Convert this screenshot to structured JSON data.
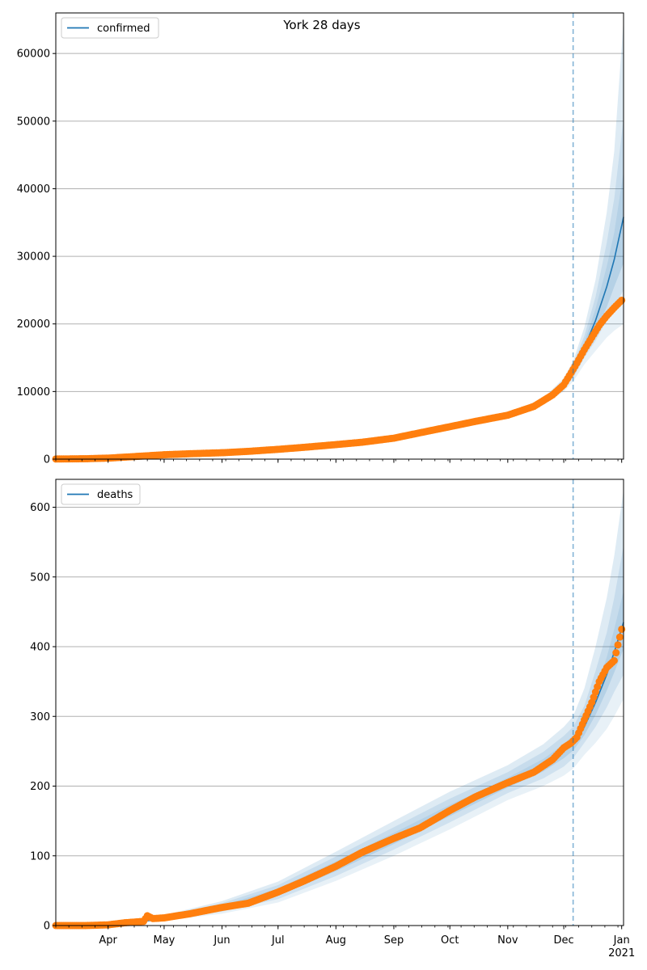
{
  "figure": {
    "title": "York 28 days"
  },
  "colors": {
    "model_line": "#1f77b4",
    "observed": "#ff7f0e",
    "band": "#1f77b4",
    "grid": "#b0b0b0",
    "forecast_start_line": "#1f77b4"
  },
  "x_axis": {
    "month_labels": [
      "Apr",
      "May",
      "Jun",
      "Jul",
      "Aug",
      "Sep",
      "Oct",
      "Nov",
      "Dec",
      "Jan"
    ],
    "month_dates": [
      "2020-04-01",
      "2020-05-01",
      "2020-06-01",
      "2020-07-01",
      "2020-08-01",
      "2020-09-01",
      "2020-10-01",
      "2020-11-01",
      "2020-12-01",
      "2021-01-01"
    ],
    "year_label": "2021",
    "range": [
      "2020-03-04",
      "2021-01-02"
    ],
    "forecast_start": "2020-12-06"
  },
  "chart_data": [
    {
      "type": "line",
      "legend": "confirmed",
      "legend_position": "top-left",
      "grid": "y",
      "ylim": [
        0,
        66000
      ],
      "yticks": [
        0,
        10000,
        20000,
        30000,
        40000,
        50000,
        60000
      ],
      "ytick_labels": [
        "0",
        "10000",
        "20000",
        "30000",
        "40000",
        "50000",
        "60000"
      ],
      "observed": {
        "x": [
          "2020-03-04",
          "2020-03-20",
          "2020-04-01",
          "2020-04-15",
          "2020-05-01",
          "2020-05-15",
          "2020-06-01",
          "2020-06-15",
          "2020-07-01",
          "2020-07-15",
          "2020-08-01",
          "2020-08-15",
          "2020-09-01",
          "2020-09-15",
          "2020-10-01",
          "2020-10-15",
          "2020-11-01",
          "2020-11-15",
          "2020-11-25",
          "2020-12-01",
          "2020-12-05",
          "2020-12-08",
          "2020-12-12",
          "2020-12-16",
          "2020-12-20",
          "2020-12-24",
          "2020-12-28",
          "2021-01-01"
        ],
        "y": [
          20,
          60,
          150,
          380,
          650,
          800,
          950,
          1150,
          1450,
          1750,
          2150,
          2500,
          3100,
          3900,
          4800,
          5600,
          6500,
          7800,
          9500,
          11000,
          12800,
          14200,
          16200,
          18000,
          19800,
          21200,
          22400,
          23500
        ]
      },
      "model": {
        "x": [
          "2020-03-04",
          "2020-04-01",
          "2020-05-01",
          "2020-06-01",
          "2020-07-01",
          "2020-08-01",
          "2020-09-01",
          "2020-10-01",
          "2020-11-01",
          "2020-11-20",
          "2020-12-01",
          "2020-12-06",
          "2020-12-12",
          "2020-12-18",
          "2020-12-24",
          "2020-12-28",
          "2021-01-02"
        ],
        "y": [
          20,
          150,
          650,
          950,
          1450,
          2150,
          3100,
          4800,
          6500,
          8500,
          11000,
          13000,
          16500,
          20500,
          25500,
          29500,
          35800
        ],
        "band_low": [
          [
            20,
            140,
            620,
            900,
            1400,
            2050,
            2950,
            4600,
            6200,
            8000,
            10000,
            11500,
            14000,
            16000,
            18000,
            19000,
            20000
          ],
          [
            20,
            145,
            630,
            920,
            1420,
            2090,
            3010,
            4680,
            6320,
            8200,
            10400,
            12000,
            15000,
            17500,
            20500,
            22500,
            25000
          ],
          [
            20,
            148,
            640,
            935,
            1435,
            2120,
            3060,
            4740,
            6410,
            8350,
            10700,
            12500,
            15700,
            18800,
            22500,
            25500,
            29000
          ]
        ],
        "band_high": [
          [
            20,
            152,
            660,
            965,
            1465,
            2180,
            3140,
            4860,
            6590,
            8650,
            11300,
            13500,
            17300,
            22200,
            28500,
            33500,
            42500
          ],
          [
            20,
            155,
            670,
            980,
            1480,
            2210,
            3190,
            4920,
            6680,
            8800,
            11600,
            14000,
            18200,
            24000,
            32000,
            38500,
            50500
          ],
          [
            20,
            160,
            680,
            1000,
            1500,
            2250,
            3250,
            5000,
            6800,
            9000,
            12000,
            14500,
            19500,
            26500,
            36500,
            45500,
            65000
          ]
        ]
      }
    },
    {
      "type": "line",
      "legend": "deaths",
      "legend_position": "top-left",
      "grid": "y",
      "ylim": [
        0,
        640
      ],
      "yticks": [
        0,
        100,
        200,
        300,
        400,
        500,
        600
      ],
      "ytick_labels": [
        "0",
        "100",
        "200",
        "300",
        "400",
        "500",
        "600"
      ],
      "observed": {
        "x": [
          "2020-03-04",
          "2020-03-20",
          "2020-04-01",
          "2020-04-10",
          "2020-04-20",
          "2020-04-22",
          "2020-04-25",
          "2020-05-01",
          "2020-05-15",
          "2020-06-01",
          "2020-06-15",
          "2020-07-01",
          "2020-07-15",
          "2020-08-01",
          "2020-08-15",
          "2020-09-01",
          "2020-09-15",
          "2020-10-01",
          "2020-10-15",
          "2020-11-01",
          "2020-11-15",
          "2020-11-25",
          "2020-12-01",
          "2020-12-05",
          "2020-12-08",
          "2020-12-12",
          "2020-12-16",
          "2020-12-20",
          "2020-12-24",
          "2020-12-28",
          "2021-01-01"
        ],
        "y": [
          0,
          0,
          1,
          4,
          6,
          14,
          10,
          11,
          17,
          26,
          32,
          48,
          64,
          85,
          105,
          125,
          140,
          165,
          185,
          205,
          220,
          238,
          255,
          262,
          270,
          295,
          320,
          350,
          370,
          380,
          425
        ]
      },
      "model": {
        "x": [
          "2020-03-04",
          "2020-04-01",
          "2020-04-20",
          "2020-05-01",
          "2020-06-01",
          "2020-07-01",
          "2020-08-01",
          "2020-09-01",
          "2020-10-01",
          "2020-11-01",
          "2020-11-20",
          "2020-12-01",
          "2020-12-06",
          "2020-12-12",
          "2020-12-18",
          "2020-12-24",
          "2020-12-28",
          "2021-01-02"
        ],
        "y": [
          0,
          1,
          6,
          11,
          26,
          48,
          85,
          125,
          165,
          205,
          230,
          250,
          262,
          285,
          320,
          360,
          392,
          435
        ],
        "band_low": [
          [
            0,
            1,
            4,
            7,
            17,
            33,
            64,
            100,
            138,
            180,
            200,
            215,
            225,
            245,
            262,
            282,
            300,
            325
          ],
          [
            0,
            1,
            5,
            8,
            20,
            38,
            71,
            109,
            148,
            190,
            211,
            228,
            240,
            262,
            285,
            313,
            335,
            360
          ],
          [
            0,
            1,
            5,
            9,
            23,
            43,
            78,
            117,
            157,
            198,
            221,
            240,
            251,
            273,
            302,
            337,
            363,
            397
          ]
        ],
        "band_high": [
          [
            0,
            1,
            7,
            13,
            29,
            53,
            92,
            133,
            173,
            212,
            239,
            260,
            273,
            297,
            338,
            385,
            425,
            480
          ],
          [
            0,
            2,
            8,
            14,
            32,
            58,
            99,
            141,
            182,
            220,
            249,
            272,
            285,
            315,
            365,
            420,
            470,
            545
          ],
          [
            0,
            2,
            9,
            15,
            35,
            63,
            106,
            150,
            192,
            230,
            260,
            285,
            300,
            340,
            400,
            470,
            530,
            625
          ]
        ]
      }
    }
  ]
}
